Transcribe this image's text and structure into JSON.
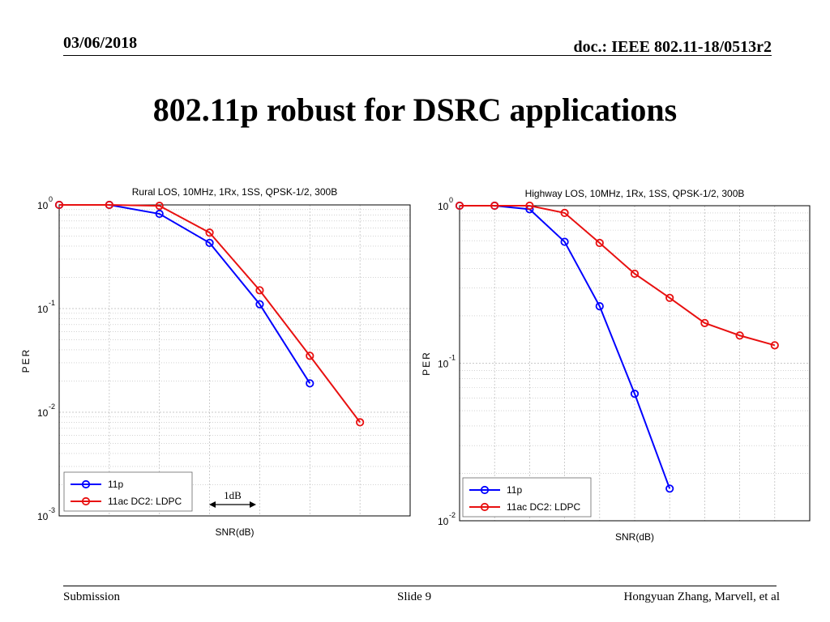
{
  "header": {
    "date": "03/06/2018",
    "doc": "doc.: IEEE 802.11-18/0513r2"
  },
  "slide": {
    "title": "802.11p robust for DSRC applications"
  },
  "footer": {
    "left": "Submission",
    "center": "Slide 9",
    "right": "Hongyuan Zhang, Marvell, et al"
  },
  "colors": {
    "series_11p": "#0000ff",
    "series_11ac": "#e81010",
    "axis": "#000000",
    "grid": "#b8b8b8"
  },
  "chart_data": [
    {
      "type": "line",
      "title": "Rural LOS, 10MHz, 1Rx, 1SS, QPSK-1/2, 300B",
      "xlabel": "SNR(dB)",
      "ylabel": "PER",
      "yscale": "log",
      "ylim": [
        0.001,
        1
      ],
      "xlim": [
        0,
        7
      ],
      "ytick_labels": [
        {
          "base": "10",
          "exp": "0"
        },
        {
          "base": "10",
          "exp": "-1"
        },
        {
          "base": "10",
          "exp": "-2"
        },
        {
          "base": "10",
          "exp": "-3"
        }
      ],
      "yticks": [
        1,
        0.1,
        0.01,
        0.001
      ],
      "grid": true,
      "legend": "bottom-left",
      "series": [
        {
          "name": "11p",
          "color_key": "series_11p",
          "x": [
            0,
            1,
            2,
            3,
            4,
            5
          ],
          "y": [
            1.0,
            1.0,
            0.82,
            0.43,
            0.11,
            0.019
          ]
        },
        {
          "name": "11ac DC2: LDPC",
          "color_key": "series_11ac",
          "x": [
            0,
            1,
            2,
            3,
            4,
            5,
            6
          ],
          "y": [
            1.0,
            1.0,
            0.98,
            0.54,
            0.15,
            0.035,
            0.008
          ]
        }
      ],
      "annotation": {
        "text": "1dB"
      }
    },
    {
      "type": "line",
      "title": "Highway LOS, 10MHz, 1Rx, 1SS, QPSK-1/2, 300B",
      "xlabel": "SNR(dB)",
      "ylabel": "PER",
      "yscale": "log",
      "ylim": [
        0.01,
        1
      ],
      "xlim": [
        0,
        10
      ],
      "ytick_labels": [
        {
          "base": "10",
          "exp": "0"
        },
        {
          "base": "10",
          "exp": "-1"
        },
        {
          "base": "10",
          "exp": "-2"
        }
      ],
      "yticks": [
        1,
        0.1,
        0.01
      ],
      "grid": true,
      "legend": "bottom-left",
      "series": [
        {
          "name": "11p",
          "color_key": "series_11p",
          "x": [
            0,
            1,
            2,
            3,
            4,
            5,
            6
          ],
          "y": [
            1.0,
            1.0,
            0.95,
            0.59,
            0.23,
            0.064,
            0.016
          ]
        },
        {
          "name": "11ac DC2: LDPC",
          "color_key": "series_11ac",
          "x": [
            0,
            1,
            2,
            3,
            4,
            5,
            6,
            7,
            8,
            9
          ],
          "y": [
            1.0,
            1.0,
            1.0,
            0.9,
            0.58,
            0.37,
            0.26,
            0.18,
            0.15,
            0.13
          ]
        }
      ]
    }
  ]
}
